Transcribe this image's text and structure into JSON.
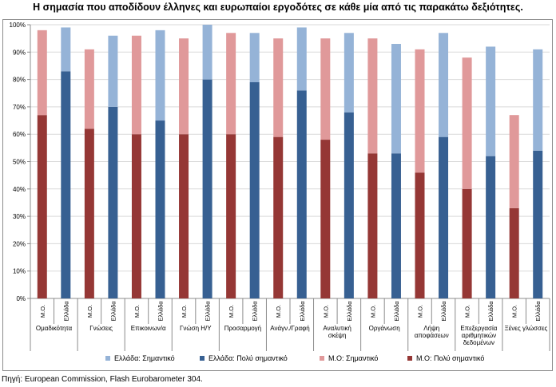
{
  "source": "Πηγή: European Commission, Flash Eurobarometer 304.",
  "chart_data": {
    "type": "bar",
    "stacked": true,
    "title": "Η σημασία που αποδίδουν έλληνες και ευρωπαίοι εργοδότες σε κάθε μία από τις παρακάτω δεξιότητες.",
    "ylim": [
      0,
      100
    ],
    "yticks": [
      "0%",
      "10%",
      "20%",
      "30%",
      "40%",
      "50%",
      "60%",
      "70%",
      "80%",
      "90%",
      "100%"
    ],
    "groups": [
      {
        "label": "Ομαδικότητα",
        "bars": [
          {
            "label": "Μ.Ο.",
            "region": "eu",
            "very": 67,
            "total": 98
          },
          {
            "label": "Ελλάδα",
            "region": "gr",
            "very": 83,
            "total": 99
          }
        ]
      },
      {
        "label": "Γνώσεις",
        "bars": [
          {
            "label": "Μ.Ο.",
            "region": "eu",
            "very": 62,
            "total": 91
          },
          {
            "label": "Ελλάδα",
            "region": "gr",
            "very": 70,
            "total": 96
          }
        ]
      },
      {
        "label": "Επικοινων/α",
        "bars": [
          {
            "label": "Μ.Ο.",
            "region": "eu",
            "very": 60,
            "total": 96
          },
          {
            "label": "Ελλάδα",
            "region": "gr",
            "very": 65,
            "total": 98
          }
        ]
      },
      {
        "label": "Γνώση Η/Υ",
        "bars": [
          {
            "label": "Μ.Ο.",
            "region": "eu",
            "very": 60,
            "total": 95
          },
          {
            "label": "Ελλάδα",
            "region": "gr",
            "very": 80,
            "total": 100
          }
        ]
      },
      {
        "label": "Προσαρμογή",
        "bars": [
          {
            "label": "Μ.Ο.",
            "region": "eu",
            "very": 60,
            "total": 97
          },
          {
            "label": "Ελλάδα",
            "region": "gr",
            "very": 79,
            "total": 97
          }
        ]
      },
      {
        "label": "Ανάγν./Γραφή",
        "bars": [
          {
            "label": "Μ.Ο.",
            "region": "eu",
            "very": 59,
            "total": 95
          },
          {
            "label": "Ελλάδα",
            "region": "gr",
            "very": 76,
            "total": 99
          }
        ]
      },
      {
        "label": "Αναλυτική σκέψη",
        "bars": [
          {
            "label": "Μ.Ο.",
            "region": "eu",
            "very": 58,
            "total": 95
          },
          {
            "label": "Ελλάδα",
            "region": "gr",
            "very": 68,
            "total": 97
          }
        ]
      },
      {
        "label": "Οργάνωση",
        "bars": [
          {
            "label": "Μ.Ο.",
            "region": "eu",
            "very": 53,
            "total": 95
          },
          {
            "label": "Ελλάδα",
            "region": "gr",
            "very": 53,
            "total": 93
          }
        ]
      },
      {
        "label": "Λήψη αποφάσεων",
        "bars": [
          {
            "label": "Μ.Ο.",
            "region": "eu",
            "very": 46,
            "total": 91
          },
          {
            "label": "Ελλάδα",
            "region": "gr",
            "very": 59,
            "total": 97
          }
        ]
      },
      {
        "label": "Επεξεργασία αριθμητικών δεδομένων",
        "bars": [
          {
            "label": "Μ.Ο.",
            "region": "eu",
            "very": 40,
            "total": 88
          },
          {
            "label": "Ελλάδα",
            "region": "gr",
            "very": 52,
            "total": 92
          }
        ]
      },
      {
        "label": "Ξένες γλώσσες",
        "bars": [
          {
            "label": "Μ.Ο.",
            "region": "eu",
            "very": 33,
            "total": 67
          },
          {
            "label": "Ελλάδα",
            "region": "gr",
            "very": 54,
            "total": 91
          }
        ]
      }
    ],
    "legend": [
      {
        "label": "Ελλάδα: Σημαντικό",
        "color": "#95b3d7"
      },
      {
        "label": "Ελλάδα: Πολύ σημαντικό",
        "color": "#376092"
      },
      {
        "label": "Μ.Ο: Σημαντικό",
        "color": "#e0999a"
      },
      {
        "label": "Μ.Ο: Πολύ σημαντικό",
        "color": "#953735"
      }
    ],
    "colors": {
      "gr_very": "#376092",
      "gr_important": "#95b3d7",
      "eu_very": "#953735",
      "eu_important": "#e0999a"
    }
  }
}
